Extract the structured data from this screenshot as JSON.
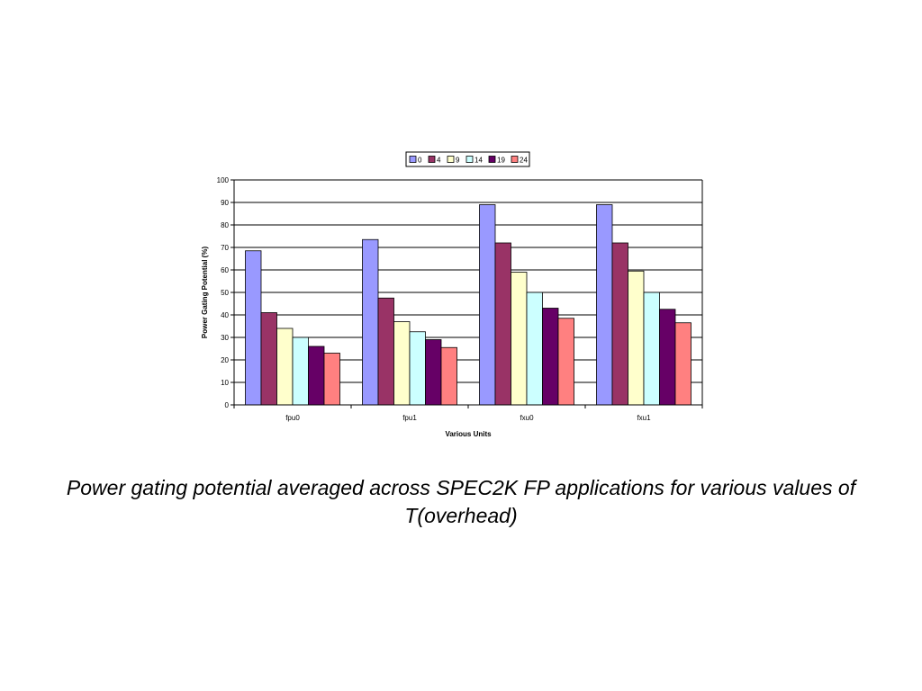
{
  "caption": "Power gating potential averaged across SPEC2K FP applications for various values of T(overhead)",
  "chart_data": {
    "type": "bar",
    "categories": [
      "fpu0",
      "fpu1",
      "fxu0",
      "fxu1"
    ],
    "series": [
      {
        "name": "0",
        "color": "#9999ff",
        "values": [
          68.5,
          73.5,
          89,
          89
        ]
      },
      {
        "name": "4",
        "color": "#993366",
        "values": [
          41,
          47.5,
          72,
          72
        ]
      },
      {
        "name": "9",
        "color": "#ffffcc",
        "values": [
          34,
          37,
          59,
          59.5
        ]
      },
      {
        "name": "14",
        "color": "#ccffff",
        "values": [
          30,
          32.5,
          50,
          50
        ]
      },
      {
        "name": "19",
        "color": "#660066",
        "values": [
          26,
          29,
          43,
          42.5
        ]
      },
      {
        "name": "24",
        "color": "#ff8080",
        "values": [
          23,
          25.5,
          38.5,
          36.5
        ]
      }
    ],
    "xlabel": "Various Units",
    "ylabel": "Power Gating Potential (%)",
    "ylim": [
      0,
      100
    ],
    "yticks": [
      0,
      10,
      20,
      30,
      40,
      50,
      60,
      70,
      80,
      90,
      100
    ],
    "grid": true,
    "legend_position": "top"
  }
}
